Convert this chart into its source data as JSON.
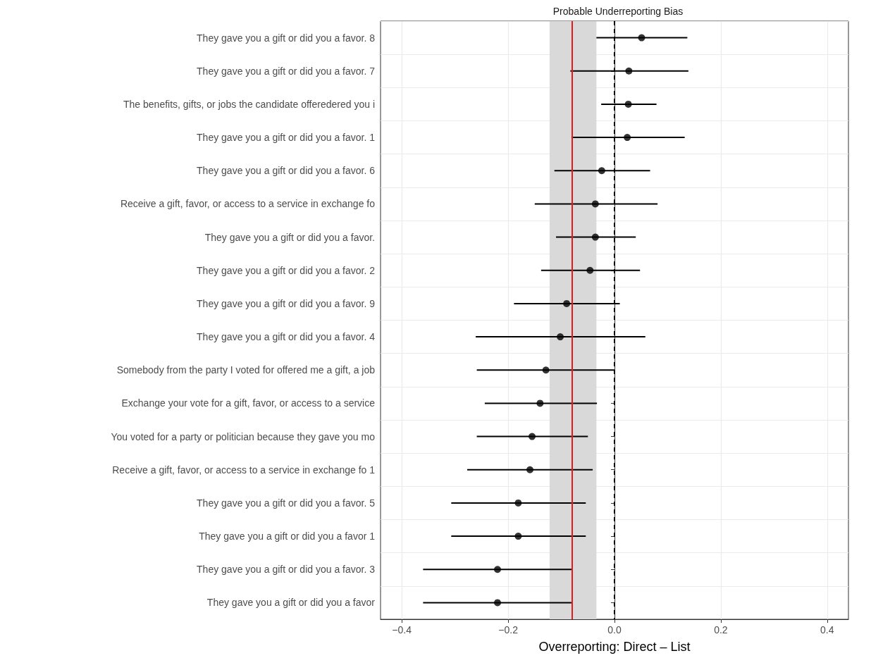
{
  "chart_data": {
    "type": "scatter",
    "orientation": "horizontal",
    "title": "Probable Underreporting Bias",
    "xlabel": "Overreporting: Direct – List",
    "categories": [
      "They gave you a gift or did you a favor. 8",
      "They gave you a gift or did you a favor. 7",
      "The benefits, gifts, or jobs the candidate offeredered you i",
      "They gave you a gift or did you a favor. 1",
      "They gave you a gift or did you a favor. 6",
      "Receive a gift, favor, or access to a service in exchange fo",
      "They gave you a gift or did you a favor.",
      "They gave you a gift or did you a favor. 2",
      "They gave you a gift or did you a favor. 9",
      "They gave you a gift or did you a favor. 4",
      "Somebody from the party I voted for offered me a gift, a job",
      "Exchange your vote for a gift, favor, or access to a service",
      "You voted for a party or politician because they gave you mo",
      "Receive a gift, favor, or access to a service in exchange fo 1",
      "They gave you a gift or did you a favor. 5",
      "They gave you a gift or did you a favor 1",
      "They gave you a gift or did you a favor. 3",
      "They gave you a gift or did you a favor"
    ],
    "series": [
      {
        "color": "#000000",
        "values": [
          0.051,
          0.027,
          0.026,
          0.024,
          -0.024,
          -0.036,
          -0.036,
          -0.046,
          -0.09,
          -0.102,
          -0.129,
          -0.14,
          -0.155,
          -0.159,
          -0.181,
          -0.181,
          -0.22,
          -0.22
        ],
        "errors": [
          [
            -0.034,
            0.137
          ],
          [
            -0.083,
            0.139
          ],
          [
            -0.025,
            0.079
          ],
          [
            -0.081,
            0.132
          ],
          [
            -0.113,
            0.067
          ],
          [
            -0.15,
            0.081
          ],
          [
            -0.11,
            0.04
          ],
          [
            -0.138,
            0.048
          ],
          [
            -0.189,
            0.01
          ],
          [
            -0.261,
            0.058
          ],
          [
            -0.259,
            0.0
          ],
          [
            -0.244,
            -0.033
          ],
          [
            -0.259,
            -0.05
          ],
          [
            -0.277,
            -0.041
          ],
          [
            -0.307,
            -0.054
          ],
          [
            -0.307,
            -0.054
          ],
          [
            -0.36,
            -0.079
          ],
          [
            -0.36,
            -0.079
          ]
        ]
      }
    ],
    "xlim": [
      -0.44,
      0.44
    ],
    "xticks": [
      -0.4,
      -0.2,
      {
        "value": 0,
        "label": "0.0"
      },
      0.2,
      0.4
    ],
    "grid": true,
    "marker": "circle",
    "ref_lines": [
      {
        "axis": "x",
        "value": -0.078,
        "color": "#e41a1c",
        "line_style": "solid"
      },
      {
        "axis": "x",
        "value": 0,
        "color": "#000000",
        "line_style": "dashed"
      }
    ],
    "bands": [
      {
        "axis": "x",
        "from": -0.122,
        "to": -0.034,
        "color": "#d9d9d9"
      }
    ]
  }
}
